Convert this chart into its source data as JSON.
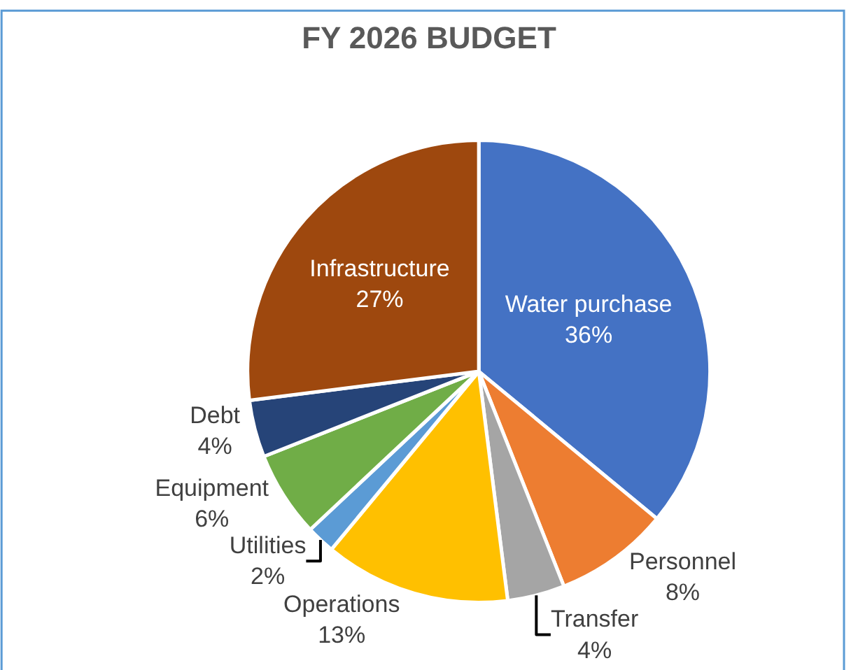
{
  "chart_data": {
    "type": "pie",
    "title": "FY 2026 BUDGET",
    "categories": [
      "Water purchase",
      "Personnel",
      "Transfer",
      "Operations",
      "Utilities",
      "Equipment",
      "Debt",
      "Infrastructure"
    ],
    "values": [
      36,
      8,
      4,
      13,
      2,
      6,
      4,
      27
    ],
    "value_labels": [
      "36%",
      "8%",
      "4%",
      "13%",
      "2%",
      "6%",
      "4%",
      "27%"
    ],
    "colors": [
      "#4472c4",
      "#ed7d31",
      "#a5a5a5",
      "#ffc000",
      "#5b9bd5",
      "#70ad47",
      "#264478",
      "#9e480e"
    ]
  }
}
